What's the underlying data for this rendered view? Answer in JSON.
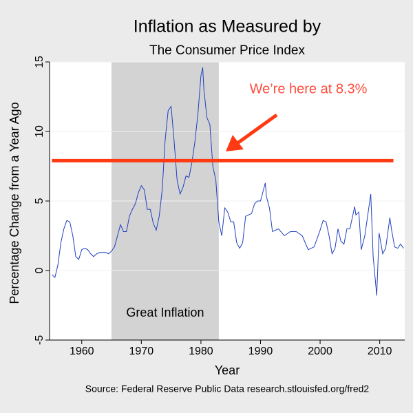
{
  "chart_data": {
    "type": "line",
    "title": "Inflation as Measured by",
    "subtitle": "The Consumer Price Index",
    "x_label": "Year",
    "y_label": "Percentage Change from a Year Ago",
    "source": "Source: Federal Reserve Public Data research.stlouisfed.org/fred2",
    "annotation": "We’re here at 8.3%",
    "shaded_region": {
      "label": "Great Inflation",
      "x": [
        1965,
        1983
      ],
      "color": "#d3d3d3"
    },
    "reference_line": {
      "value": 7.9,
      "x": [
        1955,
        2012.3
      ],
      "color": "#ff3a12"
    },
    "x": [
      1955.0,
      1955.5,
      1956.0,
      1956.5,
      1957.0,
      1957.5,
      1958.0,
      1958.5,
      1959.0,
      1959.5,
      1960.0,
      1960.5,
      1961.0,
      1961.5,
      1962.0,
      1962.5,
      1963.0,
      1963.5,
      1964.0,
      1964.5,
      1965.0,
      1965.5,
      1966.0,
      1966.5,
      1967.0,
      1967.5,
      1968.0,
      1968.5,
      1969.0,
      1969.5,
      1970.0,
      1970.5,
      1971.0,
      1971.5,
      1972.0,
      1972.5,
      1973.0,
      1973.5,
      1974.0,
      1974.5,
      1975.0,
      1975.5,
      1976.0,
      1976.5,
      1977.0,
      1977.5,
      1978.0,
      1978.5,
      1979.0,
      1979.5,
      1980.0,
      1980.3,
      1980.5,
      1981.0,
      1981.5,
      1982.0,
      1982.5,
      1983.0,
      1983.5,
      1984.0,
      1984.5,
      1985.0,
      1985.5,
      1986.0,
      1986.5,
      1987.0,
      1987.5,
      1988.0,
      1988.5,
      1989.0,
      1989.5,
      1990.0,
      1990.8,
      1991.0,
      1991.5,
      1992.0,
      1993.0,
      1994.0,
      1995.0,
      1996.0,
      1997.0,
      1998.0,
      1999.0,
      2000.0,
      2000.5,
      2001.0,
      2001.5,
      2002.0,
      2002.5,
      2003.0,
      2003.5,
      2004.0,
      2004.5,
      2005.0,
      2005.8,
      2006.0,
      2006.5,
      2006.9,
      2007.5,
      2008.0,
      2008.5,
      2008.9,
      2009.5,
      2009.9,
      2010.5,
      2011.0,
      2011.7,
      2012.0,
      2012.5,
      2013.0,
      2013.5,
      2014.0
    ],
    "series": [
      {
        "name": "CPI",
        "color": "#1f3fbf",
        "values": [
          -0.3,
          -0.5,
          0.4,
          2.0,
          3.0,
          3.6,
          3.5,
          2.5,
          1.0,
          0.8,
          1.5,
          1.6,
          1.5,
          1.2,
          1.0,
          1.2,
          1.3,
          1.3,
          1.3,
          1.2,
          1.4,
          1.7,
          2.5,
          3.3,
          2.8,
          2.8,
          3.9,
          4.4,
          4.8,
          5.6,
          6.1,
          5.8,
          4.4,
          4.4,
          3.4,
          2.9,
          3.9,
          5.8,
          9.4,
          11.5,
          11.8,
          9.3,
          6.5,
          5.5,
          6.0,
          6.8,
          6.7,
          7.8,
          9.3,
          11.3,
          14.0,
          14.6,
          13.0,
          11.0,
          10.5,
          7.5,
          6.5,
          3.5,
          2.5,
          4.5,
          4.2,
          3.5,
          3.5,
          2.0,
          1.6,
          2.0,
          3.9,
          4.0,
          4.1,
          4.8,
          5.0,
          5.0,
          6.3,
          5.3,
          4.5,
          2.8,
          3.0,
          2.5,
          2.8,
          2.8,
          2.5,
          1.5,
          1.7,
          2.9,
          3.6,
          3.5,
          2.5,
          1.2,
          1.6,
          3.0,
          2.1,
          1.9,
          3.0,
          3.0,
          4.6,
          4.0,
          4.2,
          1.5,
          2.5,
          4.0,
          5.5,
          1.0,
          -1.8,
          2.7,
          1.2,
          1.6,
          3.8,
          2.9,
          1.7,
          1.6,
          1.9,
          1.6
        ]
      }
    ],
    "xlim": [
      1954.6,
      2014.2
    ],
    "ylim": [
      -5,
      15
    ],
    "xticks": [
      1960,
      1970,
      1980,
      1990,
      2000,
      2010
    ],
    "yticks": [
      -5,
      0,
      5,
      10,
      15
    ],
    "grid": true
  }
}
